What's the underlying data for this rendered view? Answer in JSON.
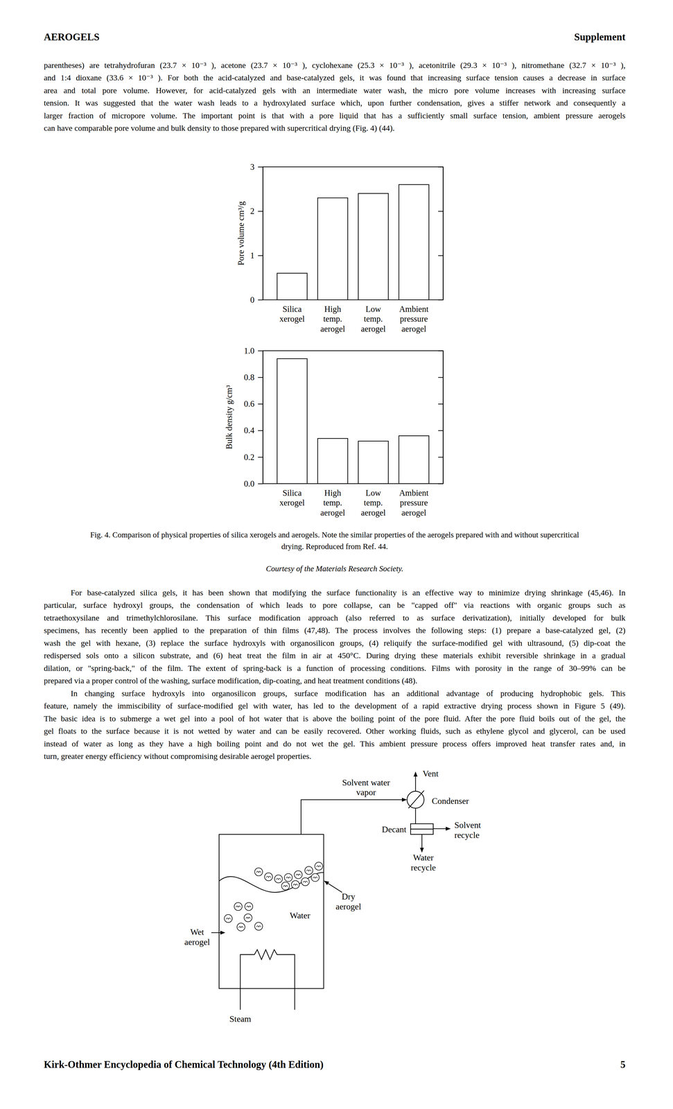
{
  "header": {
    "left": "AEROGELS",
    "right": "Supplement"
  },
  "paragraphs": [
    {
      "lines": [
        "parentheses) are tetrahydrofuran (23.7 × 10⁻³ ), acetone (23.7 × 10⁻³ ), cyclohexane (25.3 × 10⁻³ ), acetonitrile (29.3 × 10⁻³ ), nitromethane (32.7 × 10⁻³ ),",
        "and 1:4 dioxane (33.6 × 10⁻³ ). For both the acid-catalyzed and base-catalyzed gels, it was found that increasing surface tension causes a decrease in surface",
        "area and total pore volume. However, for acid-catalyzed gels with an intermediate water wash, the micro pore volume increases with increasing surface",
        "tension. It was suggested that the water wash leads to a hydroxylated surface which, upon further condensation, gives a stiffer network and consequently a",
        "larger fraction of micropore volume. The important point is that with a pore liquid that has a sufficiently small surface tension, ambient pressure aerogels",
        "can have comparable pore volume and bulk density to those prepared with supercritical drying (Fig. 4) (44)."
      ]
    },
    {
      "lines": [
        "For base-catalyzed silica gels, it has been shown that modifying the surface functionality is an effective way to minimize drying shrinkage (45,46). In",
        "particular, surface hydroxyl groups, the condensation of which leads to pore collapse, can be \"capped off\" via reactions with organic groups such as",
        "tetraethoxysilane and trimethylchlorosilane. This surface modification approach (also referred to as surface derivatization), initially developed for bulk",
        "specimens, has recently been applied to the preparation of thin films (47,48). The process involves the following steps: (1) prepare a base-catalyzed gel, (2)",
        "wash the gel with hexane, (3) replace the surface hydroxyls with organosilicon groups, (4) reliquify the surface-modified gel with ultrasound, (5) dip-coat the",
        "redispersed sols onto a silicon substrate, and (6) heat treat the film in air at 450°C. During drying these materials exhibit reversible shrinkage in a gradual",
        "dilation, or \"spring-back,\" of the film. The extent of spring-back is a function of processing conditions. Films with porosity in the range of 30–99% can be",
        "prepared via a proper control of the washing, surface modification, dip-coating, and heat treatment conditions (48)."
      ]
    },
    {
      "lines": [
        "In changing surface hydroxyls into organosilicon groups, surface modification has an additional advantage of producing hydrophobic gels. This",
        "feature, namely the immiscibility of surface-modified gel with water, has led to the development of a rapid extractive drying process shown in Figure 5 (49).",
        "The basic idea is to submerge a wet gel into a pool of hot water that is above the boiling point of the pore fluid. After the pore fluid boils out of the gel, the",
        "gel floats to the surface because it is not wetted by water and can be easily recovered. Other working fluids, such as ethylene glycol and glycerol, can be used",
        "instead of water as long as they have a high boiling point and do not wet the gel. This ambient pressure process offers improved heat transfer rates and, in",
        "turn, greater energy efficiency without compromising desirable aerogel properties."
      ]
    }
  ],
  "chart_data": [
    {
      "type": "bar",
      "ylabel": "Pore volume cm³/g",
      "categories": [
        [
          "Silica",
          "xerogel"
        ],
        [
          "High",
          "temp.",
          "aerogel"
        ],
        [
          "Low",
          "temp.",
          "aerogel"
        ],
        [
          "Ambient",
          "pressure",
          "aerogel"
        ]
      ],
      "values": [
        0.6,
        2.3,
        2.4,
        2.6
      ],
      "color": "#ffffff",
      "ylim": [
        0,
        3
      ],
      "yticks": [
        0,
        1,
        2,
        3
      ],
      "grid": false
    },
    {
      "type": "bar",
      "ylabel": "Bulk density g/cm³",
      "categories": [
        [
          "Silica",
          "xerogel"
        ],
        [
          "High",
          "temp.",
          "aerogel"
        ],
        [
          "Low",
          "temp.",
          "aerogel"
        ],
        [
          "Ambient",
          "pressure",
          "aerogel"
        ]
      ],
      "values": [
        0.94,
        0.34,
        0.32,
        0.36
      ],
      "color": "#ffffff",
      "ylim": [
        0,
        1
      ],
      "yticks": [
        {
          "value": 0,
          "label": "0.0"
        },
        0.2,
        0.4,
        0.6,
        0.8,
        {
          "value": 1,
          "label": "1.0"
        }
      ],
      "grid": false
    }
  ],
  "caption": [
    "Fig. 4. Comparison of physical properties of silica xerogels and aerogels. Note the similar properties of the aerogels prepared with and without supercritical",
    "drying. Reproduced from Ref. 44."
  ],
  "credit": "Courtesy of the Materials Research Society.",
  "diagram": {
    "vent": "Vent",
    "condenser": "Condenser",
    "vapor": [
      "Solvent water",
      "vapor"
    ],
    "decant": "Decant",
    "solvent_recycle": [
      "Solvent",
      "recycle"
    ],
    "water_recycle": [
      "Water",
      "recycle"
    ],
    "dry_aerogel": [
      "Dry",
      "aerogel"
    ],
    "water": "Water",
    "wet_aerogel": [
      "Wet",
      "aerogel"
    ],
    "steam": "Steam"
  },
  "footer": {
    "left": "Kirk-Othmer Encyclopedia of Chemical Technology (4th Edition)",
    "right": "5"
  }
}
